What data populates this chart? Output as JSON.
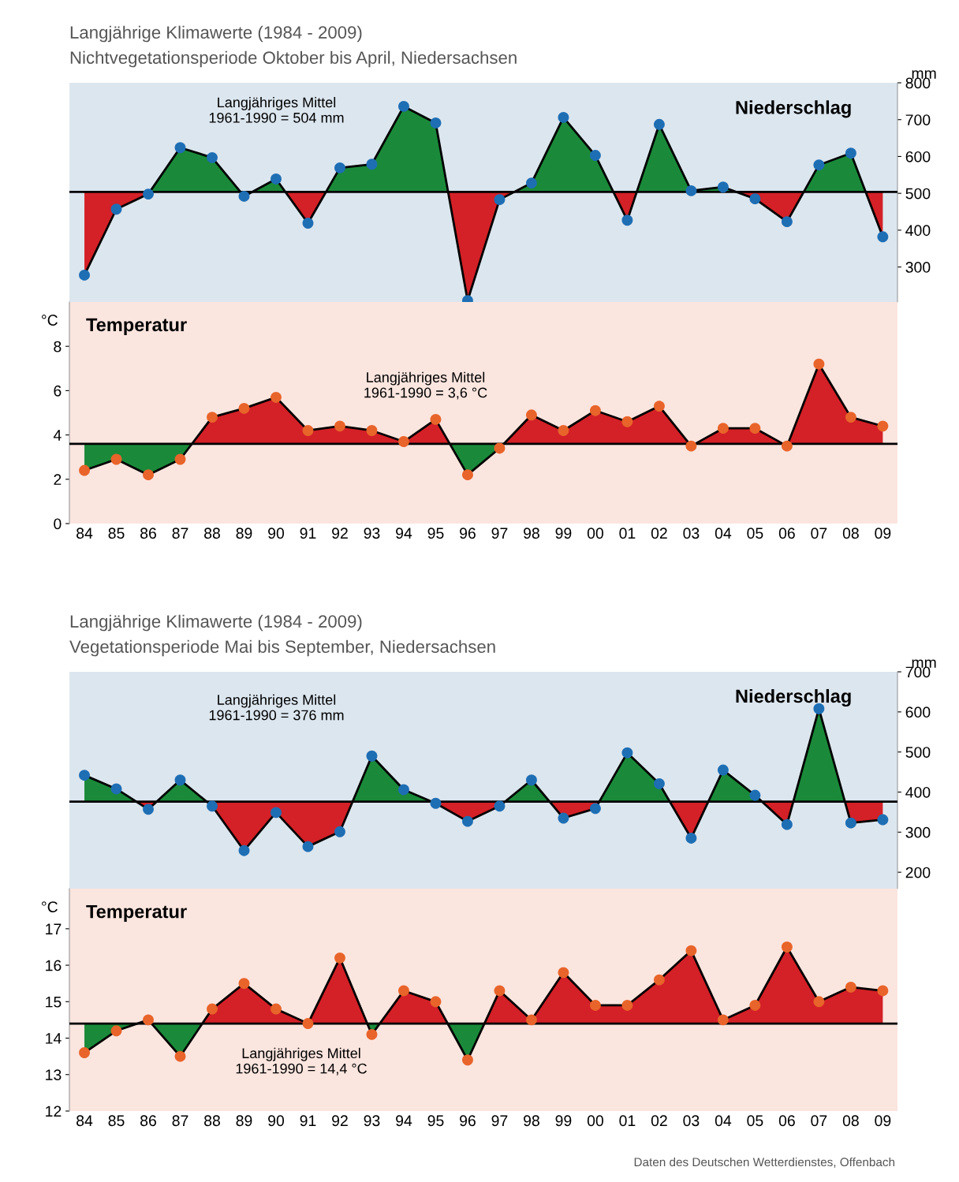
{
  "chart_data": [
    {
      "type": "line",
      "title": "Langjährige Klimawerte (1984 - 2009)",
      "subtitle": "Nichtvegetationsperiode Oktober bis April, Niedersachsen",
      "y2label": "mm",
      "categories": [
        "84",
        "85",
        "86",
        "87",
        "88",
        "89",
        "90",
        "91",
        "92",
        "93",
        "94",
        "95",
        "96",
        "97",
        "98",
        "99",
        "00",
        "01",
        "02",
        "03",
        "04",
        "05",
        "06",
        "07",
        "08",
        "09"
      ],
      "series": [
        {
          "name": "Niederschlag",
          "color": "#000000",
          "colors": [
            "#1e6eb4",
            "#1e6eb4",
            "#1e6eb4",
            "#1e6eb4",
            "#1e6eb4",
            "#1e6eb4",
            "#1e6eb4",
            "#1e6eb4",
            "#1e6eb4",
            "#1e6eb4",
            "#1e6eb4",
            "#1e6eb4",
            "#1e6eb4",
            "#1e6eb4",
            "#1e6eb4",
            "#1e6eb4",
            "#1e6eb4",
            "#1e6eb4",
            "#1e6eb4",
            "#1e6eb4",
            "#1e6eb4",
            "#1e6eb4",
            "#1e6eb4",
            "#1e6eb4",
            "#1e6eb4",
            "#1e6eb4"
          ],
          "axis": "y2",
          "values": [
            278,
            457,
            498,
            624,
            597,
            492,
            539,
            419,
            569,
            579,
            736,
            691,
            209,
            483,
            528,
            706,
            603,
            427,
            687,
            507,
            517,
            485,
            423,
            577,
            609,
            382
          ]
        }
      ],
      "y2lim": [
        205,
        800
      ],
      "y2ticks": [
        300,
        400,
        500,
        600,
        700,
        800
      ],
      "ref_lines": [
        {
          "axis": "y2",
          "value": 504,
          "color": "#000000"
        }
      ],
      "annotations": [
        "Langjähriges Mittel\n1961-1990 = 504 mm"
      ],
      "marker": "circle",
      "line_style": "solid",
      "grid": false,
      "legend": false,
      "tick_labels": "y"
    },
    {
      "type": "line",
      "ylabel": "°C",
      "categories": [
        "84",
        "85",
        "86",
        "87",
        "88",
        "89",
        "90",
        "91",
        "92",
        "93",
        "94",
        "95",
        "96",
        "97",
        "98",
        "99",
        "00",
        "01",
        "02",
        "03",
        "04",
        "05",
        "06",
        "07",
        "08",
        "09"
      ],
      "series": [
        {
          "name": "Temperatur",
          "color": "#000000",
          "colors": [
            "#e8642a",
            "#e8642a",
            "#e8642a",
            "#e8642a",
            "#e8642a",
            "#e8642a",
            "#e8642a",
            "#e8642a",
            "#e8642a",
            "#e8642a",
            "#e8642a",
            "#e8642a",
            "#e8642a",
            "#e8642a",
            "#e8642a",
            "#e8642a",
            "#e8642a",
            "#e8642a",
            "#e8642a",
            "#e8642a",
            "#e8642a",
            "#e8642a",
            "#e8642a",
            "#e8642a",
            "#e8642a",
            "#e8642a"
          ],
          "values": [
            2.4,
            2.9,
            2.2,
            2.9,
            4.8,
            5.2,
            5.7,
            4.2,
            4.4,
            4.2,
            3.7,
            4.7,
            2.2,
            3.4,
            4.9,
            4.2,
            5.1,
            4.6,
            5.3,
            3.5,
            4.3,
            4.3,
            3.5,
            7.2,
            4.8,
            4.4
          ]
        }
      ],
      "ylim": [
        0,
        10
      ],
      "yticks": [
        0,
        2,
        4,
        6,
        8
      ],
      "ref_lines": [
        {
          "axis": "y",
          "value": 3.6,
          "color": "#000000"
        }
      ],
      "annotations": [
        "Langjähriges Mittel\n1961-1990 = 3,6 °C"
      ],
      "marker": "circle",
      "line_style": "solid",
      "grid": false,
      "legend": false
    },
    {
      "type": "line",
      "title": "Langjährige Klimawerte (1984 - 2009)",
      "subtitle": "Vegetationsperiode Mai bis September, Niedersachsen",
      "y2label": "mm",
      "categories": [
        "84",
        "85",
        "86",
        "87",
        "88",
        "89",
        "90",
        "91",
        "92",
        "93",
        "94",
        "95",
        "96",
        "97",
        "98",
        "99",
        "00",
        "01",
        "02",
        "03",
        "04",
        "05",
        "06",
        "07",
        "08",
        "09"
      ],
      "series": [
        {
          "name": "Niederschlag",
          "color": "#000000",
          "colors": [
            "#1e6eb4",
            "#1e6eb4",
            "#1e6eb4",
            "#1e6eb4",
            "#1e6eb4",
            "#1e6eb4",
            "#1e6eb4",
            "#1e6eb4",
            "#1e6eb4",
            "#1e6eb4",
            "#1e6eb4",
            "#1e6eb4",
            "#1e6eb4",
            "#1e6eb4",
            "#1e6eb4",
            "#1e6eb4",
            "#1e6eb4",
            "#1e6eb4",
            "#1e6eb4",
            "#1e6eb4",
            "#1e6eb4",
            "#1e6eb4",
            "#1e6eb4",
            "#1e6eb4",
            "#1e6eb4",
            "#1e6eb4"
          ],
          "axis": "y2",
          "values": [
            442,
            408,
            357,
            430,
            365,
            254,
            349,
            264,
            301,
            490,
            406,
            372,
            327,
            365,
            430,
            335,
            359,
            498,
            421,
            285,
            455,
            392,
            319,
            608,
            323,
            331
          ]
        }
      ],
      "y2lim": [
        159,
        700
      ],
      "y2ticks": [
        200,
        300,
        400,
        500,
        600,
        700
      ],
      "ref_lines": [
        {
          "axis": "y2",
          "value": 376,
          "color": "#000000"
        }
      ],
      "annotations": [
        "Langjähriges Mittel\n1961-1990 = 376 mm"
      ],
      "marker": "circle",
      "line_style": "solid",
      "grid": false,
      "legend": false,
      "tick_labels": "y"
    },
    {
      "type": "line",
      "ylabel": "°C",
      "categories": [
        "84",
        "85",
        "86",
        "87",
        "88",
        "89",
        "90",
        "91",
        "92",
        "93",
        "94",
        "95",
        "96",
        "97",
        "98",
        "99",
        "00",
        "01",
        "02",
        "03",
        "04",
        "05",
        "06",
        "07",
        "08",
        "09"
      ],
      "series": [
        {
          "name": "Temperatur",
          "color": "#000000",
          "colors": [
            "#e8642a",
            "#e8642a",
            "#e8642a",
            "#e8642a",
            "#e8642a",
            "#e8642a",
            "#e8642a",
            "#e8642a",
            "#e8642a",
            "#e8642a",
            "#e8642a",
            "#e8642a",
            "#e8642a",
            "#e8642a",
            "#e8642a",
            "#e8642a",
            "#e8642a",
            "#e8642a",
            "#e8642a",
            "#e8642a",
            "#e8642a",
            "#e8642a",
            "#e8642a",
            "#e8642a",
            "#e8642a",
            "#e8642a"
          ],
          "values": [
            13.6,
            14.2,
            14.5,
            13.5,
            14.8,
            15.5,
            14.8,
            14.4,
            16.2,
            14.1,
            15.3,
            15.0,
            13.4,
            15.3,
            14.5,
            15.8,
            14.9,
            14.9,
            15.6,
            16.4,
            14.5,
            14.9,
            16.5,
            15.0,
            15.4,
            15.3
          ]
        }
      ],
      "ylim": [
        12,
        18.1
      ],
      "yticks": [
        12,
        13,
        14,
        15,
        16,
        17
      ],
      "ref_lines": [
        {
          "axis": "y",
          "value": 14.4,
          "color": "#000000"
        }
      ],
      "annotations": [
        "Langjähriges Mittel\n1961-1990 = 14,4 °C",
        "Daten des Deutschen Wetterdienstes, Offenbach"
      ],
      "marker": "circle",
      "line_style": "solid",
      "grid": false,
      "legend": false
    }
  ]
}
